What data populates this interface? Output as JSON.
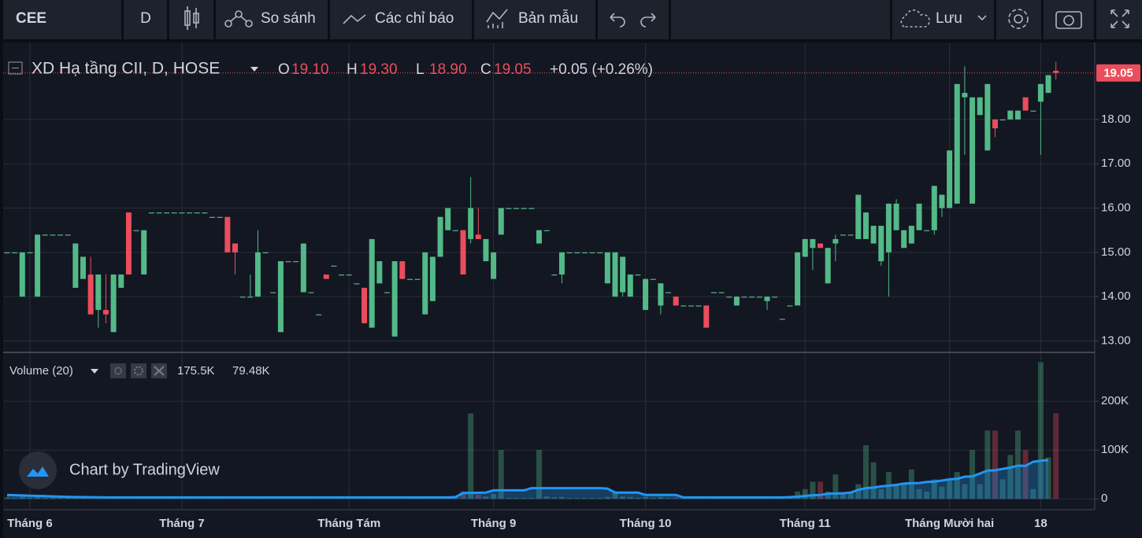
{
  "toolbar": {
    "symbol": "CEE",
    "interval": "D",
    "compare": "So sánh",
    "indicators": "Các chỉ báo",
    "templates": "Bản mẫu",
    "save": "Lưu"
  },
  "watermark": "Chart by TradingView",
  "chart_data": [
    {
      "type": "candlestick",
      "title": "XD Hạ tầng CII, D, HOSE",
      "ohlc": [
        {
          "key": "O",
          "value": 19.1,
          "label": "19.10"
        },
        {
          "key": "H",
          "value": 19.3,
          "label": "19.30"
        },
        {
          "key": "L",
          "value": 18.9,
          "label": "18.90"
        },
        {
          "key": "C",
          "value": 19.05,
          "label": "19.05"
        }
      ],
      "change": "+0.05 (+0.26%)",
      "last_price": 19.05,
      "up_color": "#53b987",
      "down_color": "#eb4d5c",
      "ylim": [
        12.76,
        19.72
      ],
      "yticks": [
        {
          "value": 13,
          "label": "13.00"
        },
        {
          "value": 14,
          "label": "14.00"
        },
        {
          "value": 15,
          "label": "15.00"
        },
        {
          "value": 16,
          "label": "16.00"
        },
        {
          "value": 17,
          "label": "17.00"
        },
        {
          "value": 18,
          "label": "18.00"
        }
      ],
      "grid": true,
      "categories": [
        null,
        null,
        null,
        "Tháng 6",
        null,
        null,
        null,
        null,
        null,
        null,
        null,
        null,
        null,
        null,
        null,
        null,
        null,
        null,
        null,
        null,
        null,
        null,
        null,
        "Tháng 7",
        null,
        null,
        null,
        null,
        null,
        null,
        null,
        null,
        null,
        null,
        null,
        null,
        null,
        null,
        null,
        null,
        null,
        null,
        null,
        null,
        null,
        "Tháng Tám",
        null,
        null,
        null,
        null,
        null,
        null,
        null,
        null,
        null,
        null,
        null,
        null,
        null,
        null,
        null,
        null,
        null,
        null,
        "Tháng 9",
        null,
        null,
        null,
        null,
        null,
        null,
        null,
        null,
        null,
        null,
        null,
        null,
        null,
        null,
        null,
        null,
        null,
        null,
        null,
        "Tháng 10",
        null,
        null,
        null,
        null,
        null,
        null,
        null,
        null,
        null,
        null,
        null,
        null,
        null,
        null,
        null,
        null,
        null,
        null,
        null,
        null,
        "Tháng 11",
        null,
        null,
        null,
        null,
        null,
        null,
        null,
        null,
        null,
        null,
        null,
        null,
        null,
        null,
        null,
        null,
        null,
        null,
        "Tháng Mười hai",
        null,
        null,
        null,
        null,
        null,
        null,
        null,
        null,
        null,
        null,
        null,
        "18",
        null,
        null
      ],
      "open": [
        15,
        15,
        14,
        15,
        14,
        15.4,
        15.4,
        15.4,
        15.4,
        14.2,
        14.4,
        14.5,
        13.7,
        13.7,
        13.2,
        14.2,
        15.9,
        15.5,
        14.5,
        15.9,
        15.9,
        15.9,
        15.9,
        15.9,
        15.9,
        15.9,
        15.9,
        15.8,
        15.8,
        15.8,
        15.2,
        14,
        14,
        14,
        15,
        14.1,
        13.2,
        14.8,
        14.8,
        14.1,
        14.1,
        13.6,
        14.5,
        14.7,
        14.5,
        14.5,
        14.3,
        14.2,
        13.3,
        14.3,
        14.1,
        13.1,
        14.8,
        14.4,
        14.4,
        13.6,
        13.9,
        14.9,
        15.5,
        15.5,
        15.5,
        15.3,
        15.4,
        14.8,
        14.4,
        15.4,
        16,
        16,
        16,
        16,
        15.2,
        15.5,
        14.5,
        14.5,
        15,
        15,
        15,
        15,
        15,
        14.3,
        14,
        14.1,
        14,
        14.5,
        13.7,
        14.4,
        13.8,
        14.1,
        14,
        13.8,
        13.8,
        13.8,
        13.8,
        14.1,
        14.1,
        14,
        13.8,
        14,
        14,
        14,
        13.9,
        14,
        13.5,
        13.8,
        13.8,
        14.9,
        15.1,
        15.2,
        14.3,
        15.2,
        15.4,
        15.4,
        15.3,
        15.3,
        15.2,
        14.8,
        15,
        15.5,
        15.1,
        15.2,
        15.5,
        15.5,
        15.5,
        16,
        16,
        16.1,
        18.5,
        16.1,
        18.1,
        17.3,
        18,
        18,
        18,
        18,
        18.5,
        18.2,
        18.4,
        18.6,
        19.1
      ],
      "high": [
        15,
        15,
        15,
        15,
        15.4,
        15.4,
        15.4,
        15.4,
        15.4,
        15.2,
        14.9,
        14.9,
        14.5,
        14.5,
        14.5,
        14.5,
        15.9,
        15.5,
        15.5,
        15.9,
        15.9,
        15.9,
        15.9,
        15.9,
        15.9,
        15.9,
        15.9,
        15.8,
        15.8,
        15.8,
        15.2,
        14,
        14.5,
        15.5,
        15,
        14.1,
        14.8,
        14.8,
        14.8,
        15.2,
        14.1,
        13.6,
        14.5,
        14.7,
        14.5,
        14.5,
        14.3,
        14.2,
        15.3,
        14.8,
        14.1,
        14.8,
        14.8,
        14.4,
        14.4,
        15,
        14.9,
        15.8,
        16,
        15.5,
        15.5,
        16.7,
        16,
        15.3,
        15,
        16,
        16,
        16,
        16,
        16,
        15.5,
        15.5,
        14.5,
        15,
        15,
        15,
        15,
        15,
        15,
        15,
        15,
        14.9,
        14.5,
        14.5,
        14.4,
        14.4,
        14.3,
        14.1,
        14,
        13.8,
        13.8,
        13.8,
        13.8,
        14.1,
        14.1,
        14,
        14,
        14,
        14,
        14,
        14,
        14,
        13.5,
        13.8,
        15,
        15.3,
        15.3,
        15.2,
        15.1,
        15.4,
        15.4,
        15.4,
        16.3,
        15.9,
        15.6,
        15.6,
        16.1,
        16.2,
        15.5,
        15.6,
        16.1,
        15.5,
        16.5,
        16.3,
        17.3,
        18.8,
        19.2,
        18.5,
        18.5,
        18.8,
        18,
        18,
        18.2,
        18.2,
        18.5,
        18.2,
        18.8,
        19,
        19.3
      ],
      "low": [
        15,
        15,
        14,
        15,
        14,
        15.4,
        15.4,
        15.4,
        15.4,
        14.2,
        14.4,
        13.6,
        13.3,
        13.4,
        13.2,
        14.2,
        14.5,
        15.5,
        14.5,
        15.9,
        15.9,
        15.9,
        15.9,
        15.9,
        15.9,
        15.9,
        15.9,
        15.8,
        15.8,
        15,
        14.5,
        14,
        14,
        14,
        15,
        14.1,
        13.2,
        14.8,
        14.8,
        14.1,
        14.1,
        13.6,
        14.4,
        14.7,
        14.5,
        14.5,
        14.3,
        13.4,
        13.3,
        14.3,
        14.1,
        13.1,
        14.4,
        14.4,
        14.4,
        13.6,
        13.9,
        14.9,
        15.5,
        15.5,
        14.5,
        15.2,
        15.3,
        14.8,
        14.4,
        15.4,
        16,
        16,
        16,
        16,
        15.2,
        15.5,
        14.5,
        14.3,
        15,
        15,
        15,
        15,
        15,
        14.3,
        14,
        14,
        14,
        14.5,
        13.7,
        14.4,
        13.6,
        14.1,
        13.8,
        13.8,
        13.8,
        13.8,
        13.3,
        14.1,
        14.1,
        14,
        13.8,
        14,
        14,
        14,
        13.7,
        14,
        13.5,
        13.8,
        13.8,
        14.9,
        14.6,
        15.1,
        14.3,
        14.8,
        15.4,
        15.4,
        15.3,
        15.3,
        15.2,
        14.7,
        14,
        15.5,
        15.1,
        15.2,
        15.5,
        15.5,
        15.4,
        15.8,
        16,
        16.1,
        17.2,
        16.1,
        18.1,
        17.3,
        17.6,
        18,
        18,
        18,
        18.2,
        18.2,
        17.2,
        18.6,
        18.9
      ],
      "close": [
        15,
        15,
        15,
        15,
        15.4,
        15.4,
        15.4,
        15.4,
        15.4,
        15.2,
        14.9,
        13.6,
        14.5,
        13.6,
        14.5,
        14.5,
        14.5,
        15.5,
        15.5,
        15.9,
        15.9,
        15.9,
        15.9,
        15.9,
        15.9,
        15.9,
        15.9,
        15.8,
        15.8,
        15,
        15,
        14,
        14,
        15,
        15,
        14.1,
        14.8,
        14.8,
        14.8,
        15.2,
        14.1,
        13.6,
        14.4,
        14.7,
        14.5,
        14.5,
        14.3,
        13.4,
        15.3,
        14.8,
        14.1,
        14.8,
        14.4,
        14.4,
        14.4,
        15,
        14.9,
        15.8,
        16,
        15.5,
        14.5,
        16,
        15.3,
        15.3,
        15,
        16,
        16,
        16,
        16,
        16,
        15.5,
        15.5,
        14.5,
        15,
        15,
        15,
        15,
        15,
        15,
        15,
        15,
        14.9,
        14.5,
        14.5,
        14.4,
        14.4,
        14.3,
        14.1,
        13.8,
        13.8,
        13.8,
        13.8,
        13.3,
        14.1,
        14.1,
        14,
        14,
        14,
        14,
        14,
        14,
        14,
        13.5,
        13.8,
        15,
        15.3,
        15.3,
        15.1,
        15.1,
        15.3,
        15.4,
        15.4,
        16.3,
        15.9,
        15.6,
        15.6,
        16.1,
        16.1,
        15.5,
        15.6,
        16.1,
        15.5,
        16.5,
        16.3,
        17.3,
        18.8,
        18.6,
        18.5,
        18.5,
        18.8,
        17.8,
        18,
        18.2,
        18.2,
        18.2,
        18.2,
        18.8,
        19,
        19.05
      ]
    },
    {
      "type": "bar",
      "title": "Volume (20)",
      "up_color": "#53b987",
      "down_color": "#eb4d5c",
      "ylim": [
        -19000,
        297000
      ],
      "yticks": [
        0,
        {
          "value": 100000,
          "label": "100K"
        },
        {
          "value": 200000,
          "label": "200K"
        }
      ],
      "series": [
        {
          "type": "bar",
          "last_label": "175.5K",
          "values": [
            3000,
            2000,
            4000,
            2000,
            5000,
            2000,
            2000,
            2000,
            2000,
            4000,
            3000,
            5000,
            4000,
            3000,
            5000,
            3000,
            4000,
            2000,
            4000,
            2000,
            2000,
            2000,
            2000,
            2000,
            2000,
            2000,
            2000,
            2000,
            2000,
            4000,
            3000,
            2000,
            2000,
            4000,
            2000,
            2000,
            5000,
            2000,
            2000,
            4000,
            2000,
            2000,
            3000,
            2000,
            2000,
            2000,
            2000,
            4000,
            5000,
            3000,
            2000,
            5000,
            3000,
            2000,
            2000,
            5000,
            4000,
            4000,
            4000,
            2000,
            15000,
            175000,
            8000,
            5000,
            10000,
            100000,
            2000,
            2000,
            2000,
            2000,
            100000,
            5000,
            3000,
            4000,
            2000,
            2000,
            2000,
            2000,
            2000,
            4000,
            15000,
            5000,
            4000,
            2000,
            4000,
            2000,
            4000,
            2000,
            3000,
            2000,
            2000,
            2000,
            4000,
            2000,
            2000,
            2000,
            3000,
            2000,
            2000,
            2000,
            3000,
            2000,
            2000,
            2000,
            15000,
            20000,
            35000,
            35000,
            15000,
            50000,
            10000,
            15000,
            30000,
            110000,
            75000,
            20000,
            55000,
            30000,
            30000,
            60000,
            20000,
            15000,
            40000,
            25000,
            40000,
            55000,
            30000,
            100000,
            30000,
            140000,
            140000,
            40000,
            90000,
            140000,
            100000,
            20000,
            280000,
            85000,
            175500
          ]
        },
        {
          "type": "line",
          "color": "#2196f3",
          "last_label": "79.48K",
          "values": [
            8000,
            7500,
            7000,
            6500,
            6000,
            5500,
            5000,
            4500,
            4000,
            3800,
            3600,
            3400,
            3200,
            3000,
            3000,
            3000,
            3000,
            3000,
            3000,
            3000,
            3000,
            3000,
            3000,
            3000,
            3000,
            3000,
            3000,
            3000,
            3000,
            3000,
            3000,
            3000,
            3000,
            3000,
            3000,
            3000,
            3000,
            3000,
            3000,
            3000,
            3000,
            3000,
            3000,
            3000,
            3000,
            3000,
            3000,
            3000,
            3000,
            3000,
            3000,
            3000,
            3000,
            3000,
            3000,
            3000,
            3000,
            3000,
            3000,
            3500,
            12000,
            12300,
            12500,
            13000,
            17500,
            17500,
            17500,
            17500,
            17500,
            22000,
            22000,
            22000,
            22000,
            22000,
            22000,
            22000,
            22000,
            22000,
            22000,
            21000,
            13000,
            13000,
            13000,
            13000,
            8000,
            8000,
            8000,
            8000,
            8000,
            3000,
            3000,
            3000,
            3000,
            3000,
            3000,
            3000,
            3000,
            3000,
            3000,
            3000,
            3000,
            3000,
            3000,
            3500,
            4500,
            6000,
            7500,
            8000,
            10500,
            11000,
            11500,
            13000,
            18500,
            22000,
            23000,
            25500,
            27000,
            28500,
            31500,
            32000,
            32500,
            34500,
            35500,
            37500,
            40000,
            41000,
            45500,
            46000,
            52000,
            58000,
            58500,
            61500,
            64000,
            68000,
            67500,
            76000,
            78000,
            79480
          ]
        }
      ]
    }
  ]
}
